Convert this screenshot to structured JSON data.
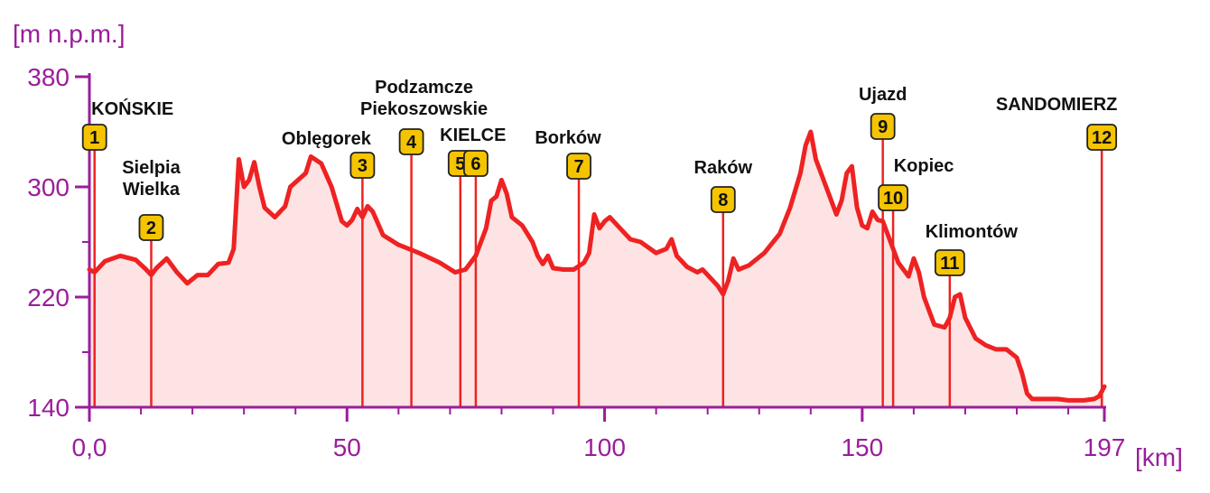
{
  "chart_data": {
    "type": "area",
    "y_unit_label": "[m n.p.m.]",
    "x_unit_label": "[km]",
    "xlim": [
      0,
      197
    ],
    "ylim": [
      140,
      380
    ],
    "x_ticks": [
      {
        "value": 0,
        "label": "0,0"
      },
      {
        "value": 50,
        "label": "50"
      },
      {
        "value": 100,
        "label": "100"
      },
      {
        "value": 150,
        "label": "150"
      },
      {
        "value": 197,
        "label": "197"
      }
    ],
    "y_ticks": [
      {
        "value": 140,
        "label": "140"
      },
      {
        "value": 220,
        "label": "220"
      },
      {
        "value": 300,
        "label": "300"
      },
      {
        "value": 380,
        "label": "380"
      }
    ],
    "grid": false,
    "colors": {
      "line": "#ee2222",
      "fill": "#fde3e3",
      "axis": "#9b1d9b",
      "marker_fill": "#f5c400",
      "marker_stroke": "#222222"
    },
    "profile": [
      [
        0,
        240
      ],
      [
        1,
        238
      ],
      [
        3,
        246
      ],
      [
        6,
        250
      ],
      [
        9,
        247
      ],
      [
        11,
        240
      ],
      [
        12,
        236
      ],
      [
        13,
        241
      ],
      [
        15,
        248
      ],
      [
        17,
        238
      ],
      [
        19,
        230
      ],
      [
        21,
        236
      ],
      [
        23,
        236
      ],
      [
        25,
        244
      ],
      [
        27,
        245
      ],
      [
        28,
        255
      ],
      [
        29,
        320
      ],
      [
        30,
        300
      ],
      [
        31,
        305
      ],
      [
        32,
        318
      ],
      [
        33,
        300
      ],
      [
        34,
        285
      ],
      [
        36,
        278
      ],
      [
        38,
        286
      ],
      [
        39,
        300
      ],
      [
        42,
        310
      ],
      [
        43,
        322
      ],
      [
        45,
        317
      ],
      [
        47,
        300
      ],
      [
        49,
        275
      ],
      [
        50,
        272
      ],
      [
        51,
        276
      ],
      [
        52,
        284
      ],
      [
        53,
        278
      ],
      [
        54,
        286
      ],
      [
        55,
        282
      ],
      [
        57,
        265
      ],
      [
        60,
        258
      ],
      [
        64,
        252
      ],
      [
        68,
        245
      ],
      [
        71,
        238
      ],
      [
        73,
        240
      ],
      [
        75,
        250
      ],
      [
        77,
        270
      ],
      [
        78,
        290
      ],
      [
        79,
        293
      ],
      [
        80,
        305
      ],
      [
        81,
        295
      ],
      [
        82,
        278
      ],
      [
        84,
        272
      ],
      [
        86,
        260
      ],
      [
        87,
        250
      ],
      [
        88,
        244
      ],
      [
        89,
        250
      ],
      [
        90,
        241
      ],
      [
        92,
        240
      ],
      [
        94,
        240
      ],
      [
        96,
        245
      ],
      [
        97,
        252
      ],
      [
        98,
        280
      ],
      [
        99,
        270
      ],
      [
        100,
        275
      ],
      [
        101,
        278
      ],
      [
        103,
        270
      ],
      [
        105,
        262
      ],
      [
        107,
        260
      ],
      [
        110,
        252
      ],
      [
        112,
        255
      ],
      [
        113,
        262
      ],
      [
        114,
        250
      ],
      [
        116,
        242
      ],
      [
        118,
        238
      ],
      [
        119,
        240
      ],
      [
        120,
        236
      ],
      [
        122,
        228
      ],
      [
        123,
        222
      ],
      [
        124,
        232
      ],
      [
        125,
        248
      ],
      [
        126,
        240
      ],
      [
        128,
        243
      ],
      [
        131,
        252
      ],
      [
        134,
        266
      ],
      [
        136,
        285
      ],
      [
        138,
        310
      ],
      [
        139,
        330
      ],
      [
        140,
        340
      ],
      [
        141,
        320
      ],
      [
        143,
        300
      ],
      [
        145,
        280
      ],
      [
        146,
        290
      ],
      [
        147,
        310
      ],
      [
        148,
        315
      ],
      [
        149,
        285
      ],
      [
        150,
        272
      ],
      [
        151,
        270
      ],
      [
        152,
        282
      ],
      [
        153,
        276
      ],
      [
        154,
        275
      ],
      [
        155,
        265
      ],
      [
        156,
        255
      ],
      [
        157,
        245
      ],
      [
        158,
        240
      ],
      [
        159,
        235
      ],
      [
        160,
        248
      ],
      [
        161,
        238
      ],
      [
        162,
        220
      ],
      [
        163,
        210
      ],
      [
        164,
        200
      ],
      [
        166,
        198
      ],
      [
        167,
        205
      ],
      [
        168,
        220
      ],
      [
        169,
        222
      ],
      [
        170,
        205
      ],
      [
        172,
        190
      ],
      [
        174,
        185
      ],
      [
        176,
        182
      ],
      [
        178,
        182
      ],
      [
        180,
        176
      ],
      [
        181,
        165
      ],
      [
        182,
        150
      ],
      [
        183,
        146
      ],
      [
        185,
        146
      ],
      [
        188,
        146
      ],
      [
        190,
        145
      ],
      [
        193,
        145
      ],
      [
        195,
        146
      ],
      [
        196,
        148
      ],
      [
        197,
        155
      ]
    ],
    "markers": [
      {
        "num": "1",
        "km": 1,
        "elev": 241
      },
      {
        "num": "2",
        "km": 12,
        "elev": 236
      },
      {
        "num": "3",
        "km": 53,
        "elev": 278
      },
      {
        "num": "4",
        "km": 62.5,
        "elev": 254
      },
      {
        "num": "5",
        "km": 72,
        "elev": 240
      },
      {
        "num": "6",
        "km": 75,
        "elev": 250
      },
      {
        "num": "7",
        "km": 95,
        "elev": 241
      },
      {
        "num": "8",
        "km": 123,
        "elev": 222
      },
      {
        "num": "9",
        "km": 154,
        "elev": 275
      },
      {
        "num": "10",
        "km": 156,
        "elev": 255
      },
      {
        "num": "11",
        "km": 167,
        "elev": 205
      },
      {
        "num": "12",
        "km": 196.5,
        "elev": 148
      }
    ],
    "places": [
      {
        "marker": "1",
        "lines": [
          "KOŃSKIE"
        ]
      },
      {
        "marker": "2",
        "lines": [
          "Sielpia",
          "Wielka"
        ]
      },
      {
        "marker": "3",
        "lines": [
          "Oblęgorek"
        ]
      },
      {
        "marker": "4",
        "lines": [
          "Podzamcze",
          "Piekoszowskie"
        ]
      },
      {
        "marker": "5",
        "lines": [
          "KIELCE"
        ]
      },
      {
        "marker": "7",
        "lines": [
          "Borków"
        ]
      },
      {
        "marker": "8",
        "lines": [
          "Raków"
        ]
      },
      {
        "marker": "9",
        "lines": [
          "Ujazd"
        ]
      },
      {
        "marker": "10",
        "lines": [
          "Kopiec"
        ]
      },
      {
        "marker": "11",
        "lines": [
          "Klimontów"
        ]
      },
      {
        "marker": "12",
        "lines": [
          "SANDOMIERZ"
        ]
      }
    ]
  }
}
